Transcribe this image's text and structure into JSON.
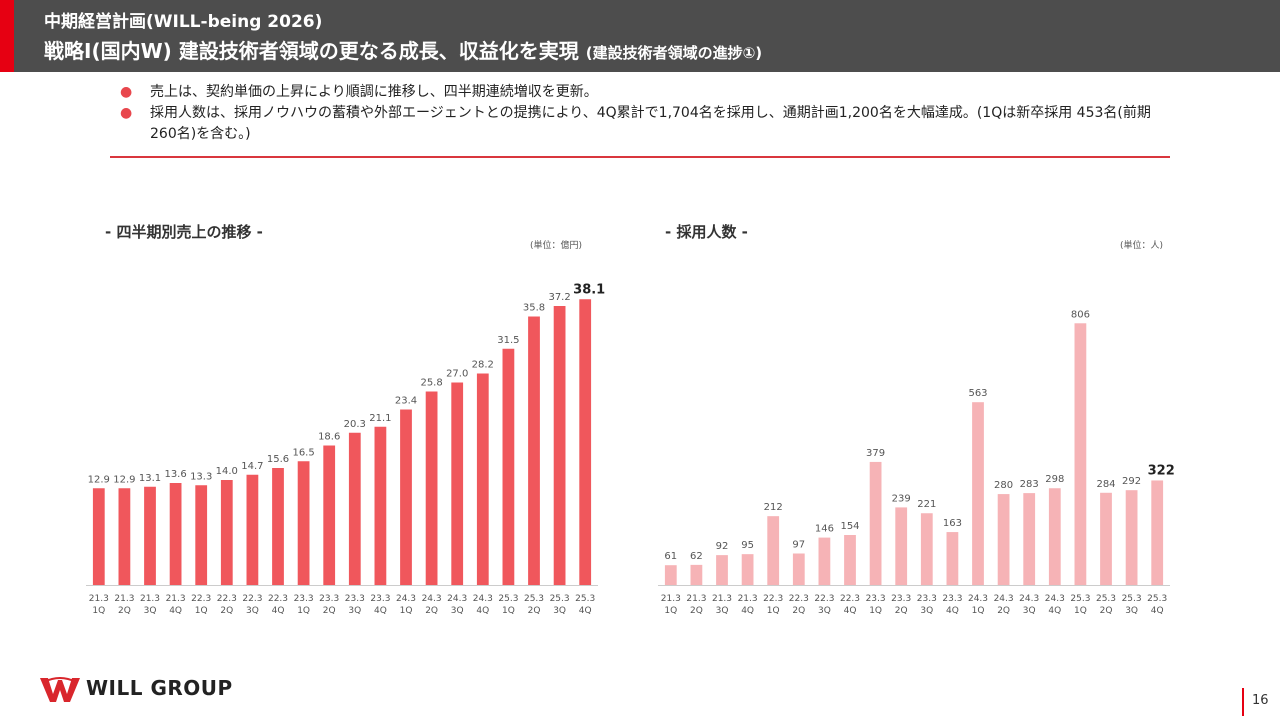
{
  "header": {
    "subtitle": "中期経営計画(WILL-being 2026)",
    "title": "戦略Ⅰ(国内W) 建設技術者領域の更なる成長、収益化を実現",
    "title_note": "(建設技術者領域の進捗①)",
    "accent_color": "#e60012",
    "bg_color": "#4d4d4d"
  },
  "bullets": [
    "売上は、契約単価の上昇により順調に推移し、四半期連続増収を更新。",
    "採用人数は、採用ノウハウの蓄積や外部エージェントとの提携により、4Q累計で1,704名を採用し、通期計画1,200名を大幅達成。(1Qは新卒採用 453名(前期 260名)を含む。)"
  ],
  "chart_data": [
    {
      "type": "bar",
      "title": "- 四半期別売上の推移 -",
      "unit": "(単位：億円)",
      "color": "#f0575c",
      "categories": [
        "21.3 1Q",
        "21.3 2Q",
        "21.3 3Q",
        "21.3 4Q",
        "22.3 1Q",
        "22.3 2Q",
        "22.3 3Q",
        "22.3 4Q",
        "23.3 1Q",
        "23.3 2Q",
        "23.3 3Q",
        "23.3 4Q",
        "24.3 1Q",
        "24.3 2Q",
        "24.3 3Q",
        "24.3 4Q",
        "25.3 1Q",
        "25.3 2Q",
        "25.3 3Q",
        "25.3 4Q"
      ],
      "values": [
        12.9,
        12.9,
        13.1,
        13.6,
        13.3,
        14.0,
        14.7,
        15.6,
        16.5,
        18.6,
        20.3,
        21.1,
        23.4,
        25.8,
        27.0,
        28.2,
        31.5,
        35.8,
        37.2,
        38.1
      ],
      "labels": [
        "12.9",
        "12.9",
        "13.1",
        "13.6",
        "13.3",
        "14.0",
        "14.7",
        "15.6",
        "16.5",
        "18.6",
        "20.3",
        "21.1",
        "23.4",
        "25.8",
        "27.0",
        "28.2",
        "31.5",
        "35.8",
        "37.2",
        "38.1"
      ],
      "highlight_last": true,
      "ylim": [
        0,
        40
      ]
    },
    {
      "type": "bar",
      "title": "- 採用人数 -",
      "unit": "(単位：人)",
      "color": "#f6b3b6",
      "categories": [
        "21.3 1Q",
        "21.3 2Q",
        "21.3 3Q",
        "21.3 4Q",
        "22.3 1Q",
        "22.3 2Q",
        "22.3 3Q",
        "22.3 4Q",
        "23.3 1Q",
        "23.3 2Q",
        "23.3 3Q",
        "23.3 4Q",
        "24.3 1Q",
        "24.3 2Q",
        "24.3 3Q",
        "24.3 4Q",
        "25.3 1Q",
        "25.3 2Q",
        "25.3 3Q",
        "25.3 4Q"
      ],
      "values": [
        61,
        62,
        92,
        95,
        212,
        97,
        146,
        154,
        379,
        239,
        221,
        163,
        563,
        280,
        283,
        298,
        806,
        284,
        292,
        322
      ],
      "labels": [
        "61",
        "62",
        "92",
        "95",
        "212",
        "97",
        "146",
        "154",
        "379",
        "239",
        "221",
        "163",
        "563",
        "280",
        "283",
        "298",
        "806",
        "284",
        "292",
        "322"
      ],
      "highlight_last": true,
      "ylim": [
        0,
        850
      ]
    }
  ],
  "footer": {
    "logo_text": "WILL GROUP",
    "page_number": "16"
  }
}
